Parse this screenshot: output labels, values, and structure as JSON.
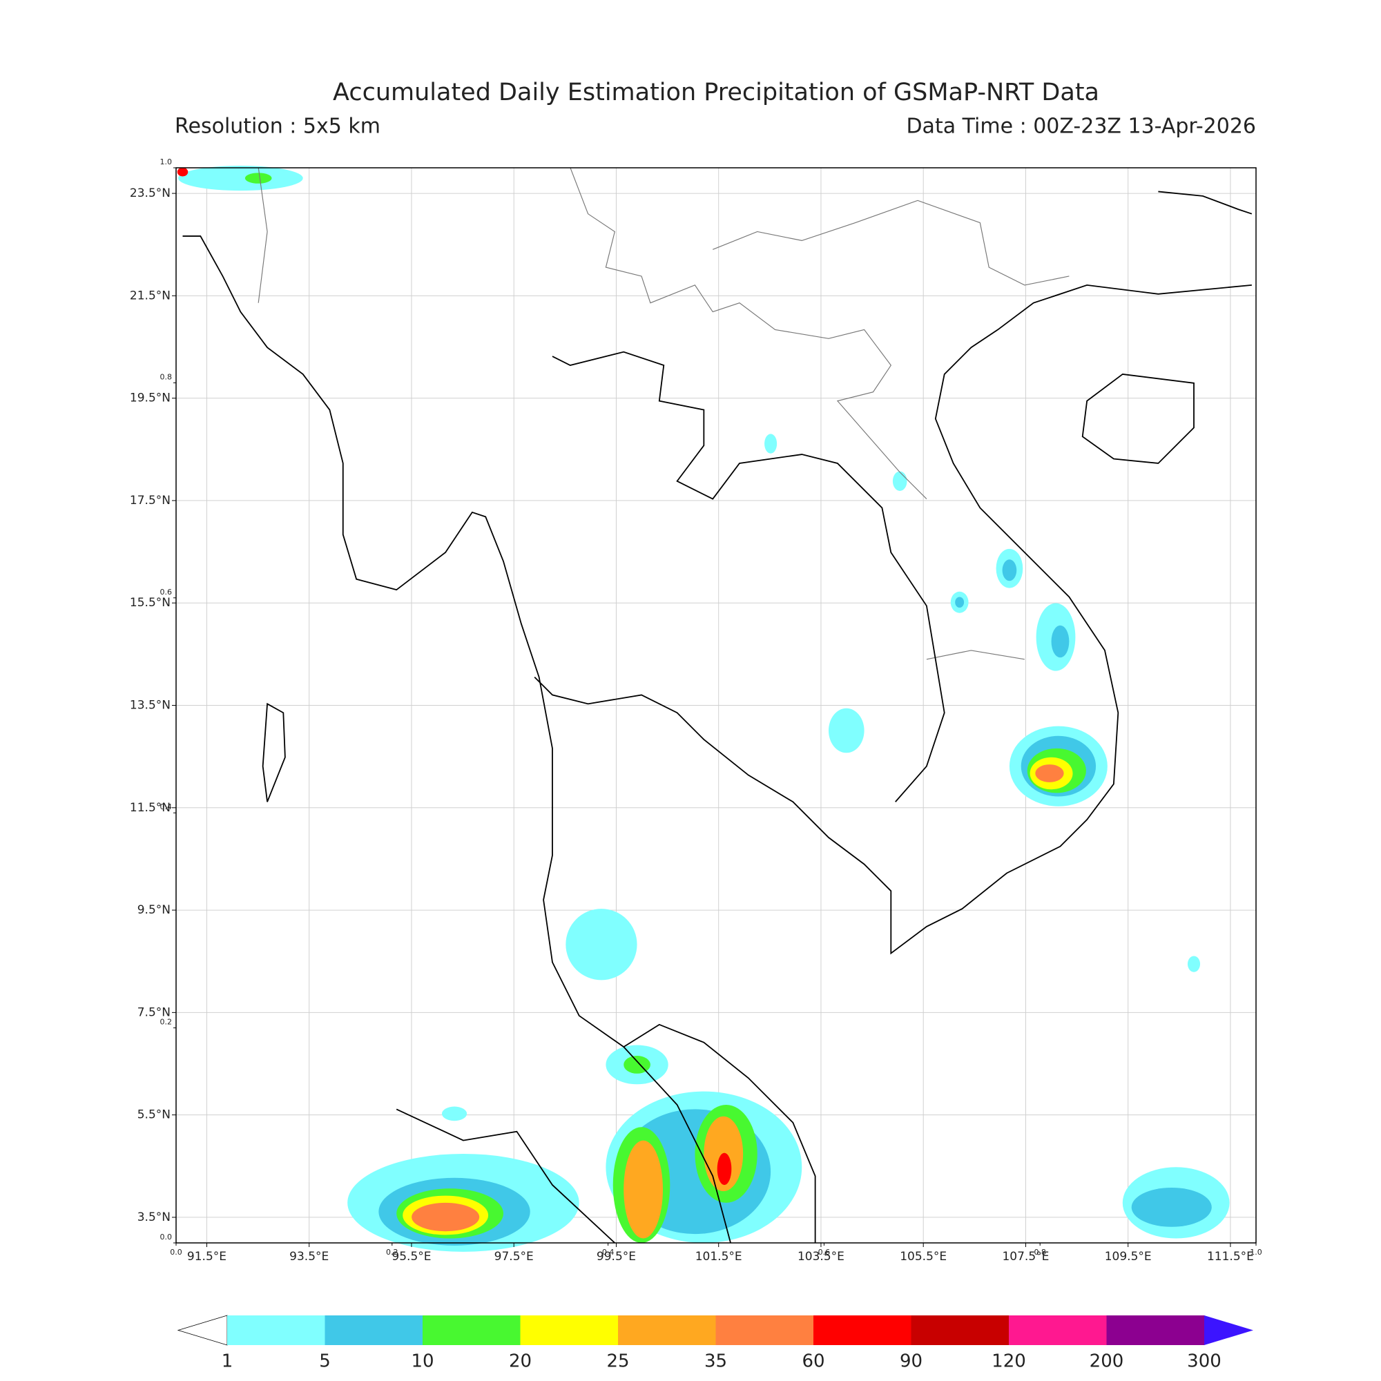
{
  "chart_data": {
    "type": "map",
    "title": "Accumulated Daily Estimation Precipitation of GSMaP-NRT Data",
    "subtitle_left": "Resolution : 5x5 km",
    "subtitle_right": "Data Time : 00Z-23Z 13-Apr-2026",
    "xlim": [
      90.9,
      112.0
    ],
    "ylim": [
      3.0,
      24.0
    ],
    "xticks": [
      {
        "value": 91.5,
        "label": "91.5°E"
      },
      {
        "value": 93.5,
        "label": "93.5°E"
      },
      {
        "value": 95.5,
        "label": "95.5°E"
      },
      {
        "value": 97.5,
        "label": "97.5°E"
      },
      {
        "value": 99.5,
        "label": "99.5°E"
      },
      {
        "value": 101.5,
        "label": "101.5°E"
      },
      {
        "value": 103.5,
        "label": "103.5°E"
      },
      {
        "value": 105.5,
        "label": "105.5°E"
      },
      {
        "value": 107.5,
        "label": "107.5°E"
      },
      {
        "value": 109.5,
        "label": "109.5°E"
      },
      {
        "value": 111.5,
        "label": "111.5°E"
      }
    ],
    "yticks": [
      {
        "value": 3.5,
        "label": "3.5°N"
      },
      {
        "value": 5.5,
        "label": "5.5°N"
      },
      {
        "value": 7.5,
        "label": "7.5°N"
      },
      {
        "value": 9.5,
        "label": "9.5°N"
      },
      {
        "value": 11.5,
        "label": "11.5°N"
      },
      {
        "value": 13.5,
        "label": "13.5°N"
      },
      {
        "value": 15.5,
        "label": "15.5°N"
      },
      {
        "value": 17.5,
        "label": "17.5°N"
      },
      {
        "value": 19.5,
        "label": "19.5°N"
      },
      {
        "value": 21.5,
        "label": "21.5°N"
      },
      {
        "value": 23.5,
        "label": "23.5°N"
      }
    ],
    "x2lim": [
      0,
      1
    ],
    "y2lim": [
      0,
      1
    ],
    "x2ticks": [
      {
        "value": 0,
        "label": "0.0"
      },
      {
        "value": 0.2,
        "label": "0.2"
      },
      {
        "value": 0.4,
        "label": "0.4"
      },
      {
        "value": 0.6,
        "label": "0.6"
      },
      {
        "value": 0.8,
        "label": "0.8"
      },
      {
        "value": 1,
        "label": "1.0"
      }
    ],
    "y2ticks": [
      {
        "value": 0,
        "label": "0.0"
      },
      {
        "value": 0.2,
        "label": "0.2"
      },
      {
        "value": 0.4,
        "label": "0.4"
      },
      {
        "value": 0.6,
        "label": "0.6"
      },
      {
        "value": 0.8,
        "label": "0.8"
      },
      {
        "value": 1,
        "label": "1.0"
      }
    ],
    "grid": true,
    "colorbar": {
      "levels": [
        1,
        5,
        10,
        20,
        25,
        35,
        60,
        90,
        120,
        200,
        300
      ],
      "colors": [
        "#ffffff",
        "#80ffff",
        "#40c8e8",
        "#48f830",
        "#ffff00",
        "#ffa820",
        "#ff8040",
        "#ff0000",
        "#c80000",
        "#ff1890",
        "#8c0090",
        "#3c14ff"
      ]
    }
  }
}
